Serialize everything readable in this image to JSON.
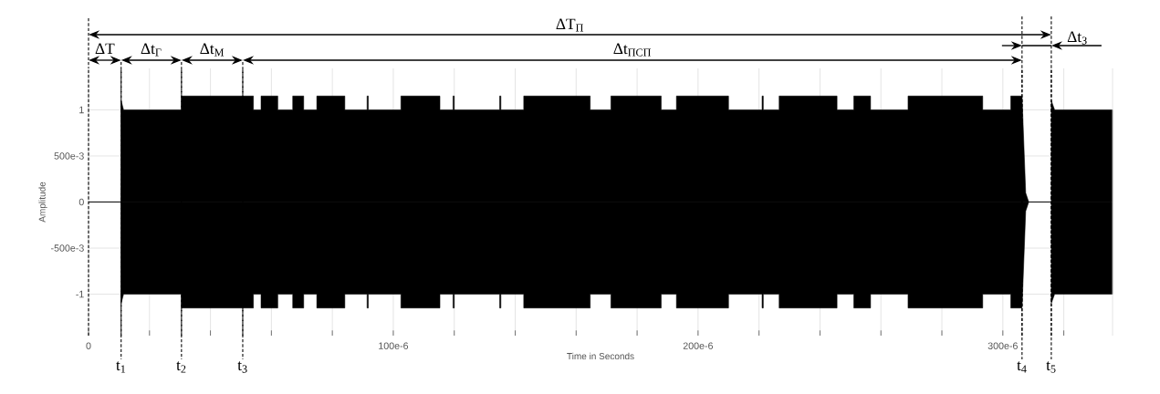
{
  "chart_data": {
    "type": "area",
    "xlabel": "Time in Seconds",
    "ylabel": "Amplitude",
    "xlim": [
      0,
      0.000336
    ],
    "ylim": [
      -1.45,
      1.45
    ],
    "xticks": [
      0,
      {
        "value": 2e-05,
        "label": null
      },
      {
        "value": 4e-05,
        "label": null
      },
      {
        "value": 6e-05,
        "label": null
      },
      {
        "value": 8e-05,
        "label": null
      },
      {
        "value": 0.0001,
        "label": "100e-6"
      },
      {
        "value": 0.00012,
        "label": null
      },
      {
        "value": 0.00014,
        "label": null
      },
      {
        "value": 0.00016,
        "label": null
      },
      {
        "value": 0.00018,
        "label": null
      },
      {
        "value": 0.0002,
        "label": "200e-6"
      },
      {
        "value": 0.00022,
        "label": null
      },
      {
        "value": 0.00024,
        "label": null
      },
      {
        "value": 0.00026,
        "label": null
      },
      {
        "value": 0.00028,
        "label": null
      },
      {
        "value": 0.0003,
        "label": "300e-6"
      },
      {
        "value": 0.00032,
        "label": null
      }
    ],
    "yticks": [
      {
        "value": -1,
        "label": "-1"
      },
      {
        "value": -0.5,
        "label": "-500e-3"
      },
      0,
      {
        "value": 0.5,
        "label": "500e-3"
      },
      1
    ],
    "grid": true,
    "x": [
      0,
      1.07e-05,
      1.07e-05,
      1.15e-05,
      3.05e-05,
      3.05e-05,
      5.41e-05,
      5.41e-05,
      5.66e-05,
      5.66e-05,
      6.21e-05,
      6.21e-05,
      6.7e-05,
      6.7e-05,
      7.06e-05,
      7.06e-05,
      7.49e-05,
      7.49e-05,
      8.41e-05,
      8.41e-05,
      9.14e-05,
      9.14e-05,
      9.18e-05,
      9.18e-05,
      0.0001025,
      0.0001025,
      0.0001153,
      0.0001153,
      0.0001196,
      0.0001196,
      0.00012,
      0.00012,
      0.0001349,
      0.0001349,
      0.0001353,
      0.0001353,
      0.0001428,
      0.0001428,
      0.0001646,
      0.0001646,
      0.0001714,
      0.0001714,
      0.0001879,
      0.0001879,
      0.0001929,
      0.0001929,
      0.00021,
      0.00021,
      0.000221,
      0.000221,
      0.0002214,
      0.0002214,
      0.0002266,
      0.0002266,
      0.0002456,
      0.0002456,
      0.0002511,
      0.0002511,
      0.0002566,
      0.0002566,
      0.0002689,
      0.0002689,
      0.0002934,
      0.0002934,
      0.0003026,
      0.0003026,
      0.0003063,
      0.0003075,
      0.0003085,
      0.0003159,
      0.0003159,
      0.000317,
      0.000336,
      0.000336
    ],
    "series": [
      {
        "color": "#000000",
        "values": [
          0,
          0,
          1.1,
          1,
          1,
          1.15,
          1.15,
          1,
          1,
          1.15,
          1.15,
          1,
          1,
          1.15,
          1.15,
          1,
          1,
          1.15,
          1.15,
          1,
          1,
          1.15,
          1.15,
          1,
          1,
          1.15,
          1.15,
          1,
          1,
          1.15,
          1.15,
          1,
          1,
          1.15,
          1.15,
          1,
          1,
          1.15,
          1.15,
          1,
          1,
          1.15,
          1.15,
          1,
          1,
          1.15,
          1.15,
          1,
          1,
          1.15,
          1.15,
          1,
          1,
          1.15,
          1.15,
          1,
          1,
          1.15,
          1.15,
          1,
          1,
          1.15,
          1.15,
          1,
          1,
          1.15,
          1.15,
          0.1,
          0,
          0,
          1.1,
          1,
          1,
          0
        ]
      },
      {
        "color": "#000000",
        "values": [
          0,
          0,
          -1.1,
          -1,
          -1,
          -1.15,
          -1.15,
          -1,
          -1,
          -1.15,
          -1.15,
          -1,
          -1,
          -1.15,
          -1.15,
          -1,
          -1,
          -1.15,
          -1.15,
          -1,
          -1,
          -1.15,
          -1.15,
          -1,
          -1,
          -1.15,
          -1.15,
          -1,
          -1,
          -1.15,
          -1.15,
          -1,
          -1,
          -1.15,
          -1.15,
          -1,
          -1,
          -1.15,
          -1.15,
          -1,
          -1,
          -1.15,
          -1.15,
          -1,
          -1,
          -1.15,
          -1.15,
          -1,
          -1,
          -1.15,
          -1.15,
          -1,
          -1,
          -1.15,
          -1.15,
          -1,
          -1,
          -1.15,
          -1.15,
          -1,
          -1,
          -1.15,
          -1.15,
          -1,
          -1,
          -1.15,
          -1.15,
          -0.1,
          0,
          0,
          -1.1,
          -1,
          -1,
          0
        ]
      }
    ],
    "ref_lines": [
      {
        "axis": "x",
        "value": 0,
        "line_style": "dashed"
      },
      {
        "axis": "x",
        "value": 1.07e-05,
        "label": "t$_{1}$",
        "line_style": "dashed"
      },
      {
        "axis": "x",
        "value": 3.05e-05,
        "label": "t$_{2}$",
        "line_style": "dashed"
      },
      {
        "axis": "x",
        "value": 5.06e-05,
        "label": "t$_{3}$",
        "line_style": "dashed"
      },
      {
        "axis": "x",
        "value": 0.0003063,
        "label": "t$_{4}$",
        "line_style": "dashed"
      },
      {
        "axis": "x",
        "value": 0.0003159,
        "label": "t$_{5}$",
        "line_style": "dashed"
      }
    ],
    "annotations": [
      "ΔT$_{П}$",
      "ΔT",
      "Δt$_{Г}$",
      "Δt$_{М}$",
      "Δt$_{ПСП}$",
      "Δt$_{З}$"
    ]
  }
}
